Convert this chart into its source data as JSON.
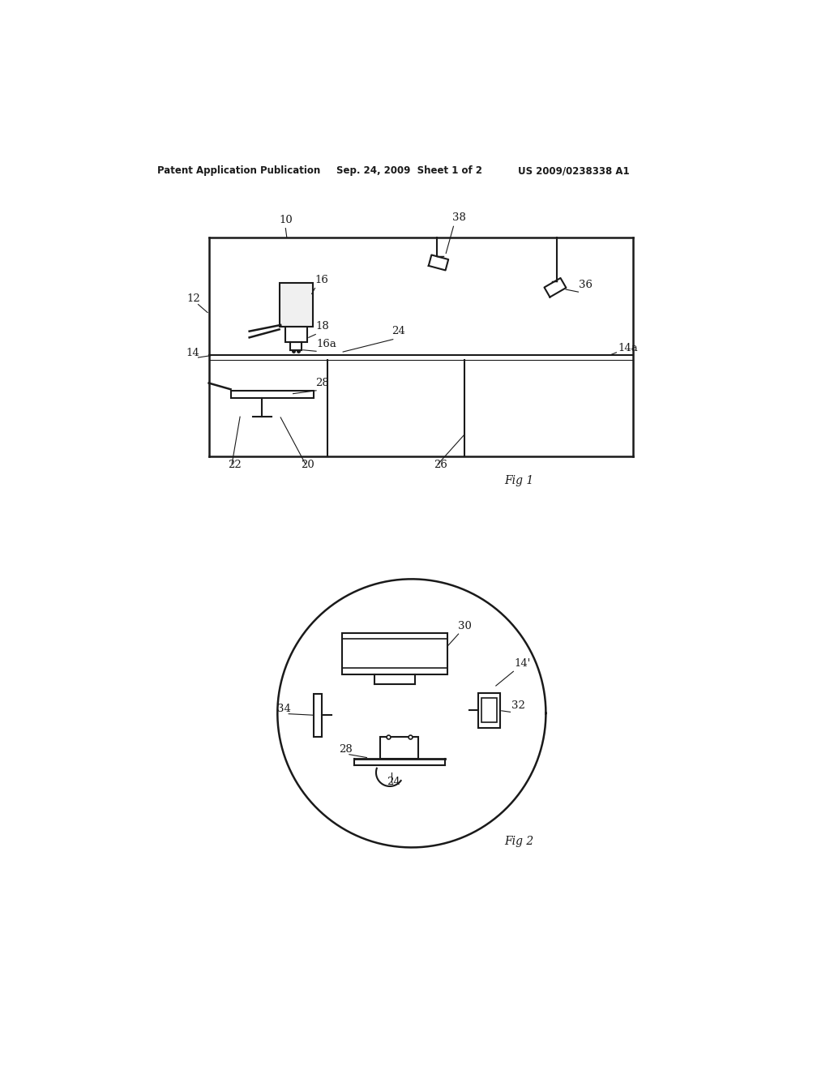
{
  "bg_color": "#ffffff",
  "line_color": "#1a1a1a",
  "header_left": "Patent Application Publication",
  "header_mid": "Sep. 24, 2009  Sheet 1 of 2",
  "header_right": "US 2009/0238338 A1",
  "fig1_label": "Fig 1",
  "fig2_label": "Fig 2",
  "lw": 1.5
}
